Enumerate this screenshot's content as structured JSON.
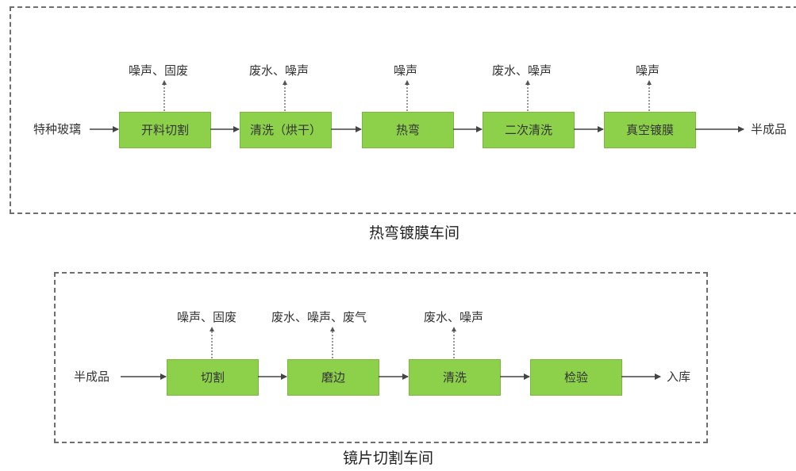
{
  "top": {
    "caption": "热弯镀膜车间",
    "input": "特种玻璃",
    "output": "半成品",
    "steps": [
      {
        "label": "开料切割",
        "emission": "噪声、固废"
      },
      {
        "label": "清洗（烘干）",
        "emission": "废水、噪声"
      },
      {
        "label": "热弯",
        "emission": "噪声"
      },
      {
        "label": "二次清洗",
        "emission": "废水、噪声"
      },
      {
        "label": "真空镀膜",
        "emission": "噪声"
      }
    ]
  },
  "bottom": {
    "caption": "镜片切割车间",
    "input": "半成品",
    "output": "入库",
    "steps": [
      {
        "label": "切割",
        "emission": "噪声、固废"
      },
      {
        "label": "磨边",
        "emission": "废水、噪声、废气"
      },
      {
        "label": "清洗",
        "emission": "废水、噪声"
      },
      {
        "label": "检验",
        "emission": ""
      }
    ]
  },
  "colors": {
    "box_fill": "#8dd14a",
    "box_border": "#79b73f",
    "line": "#555555",
    "dash": "#6f6f6f"
  }
}
